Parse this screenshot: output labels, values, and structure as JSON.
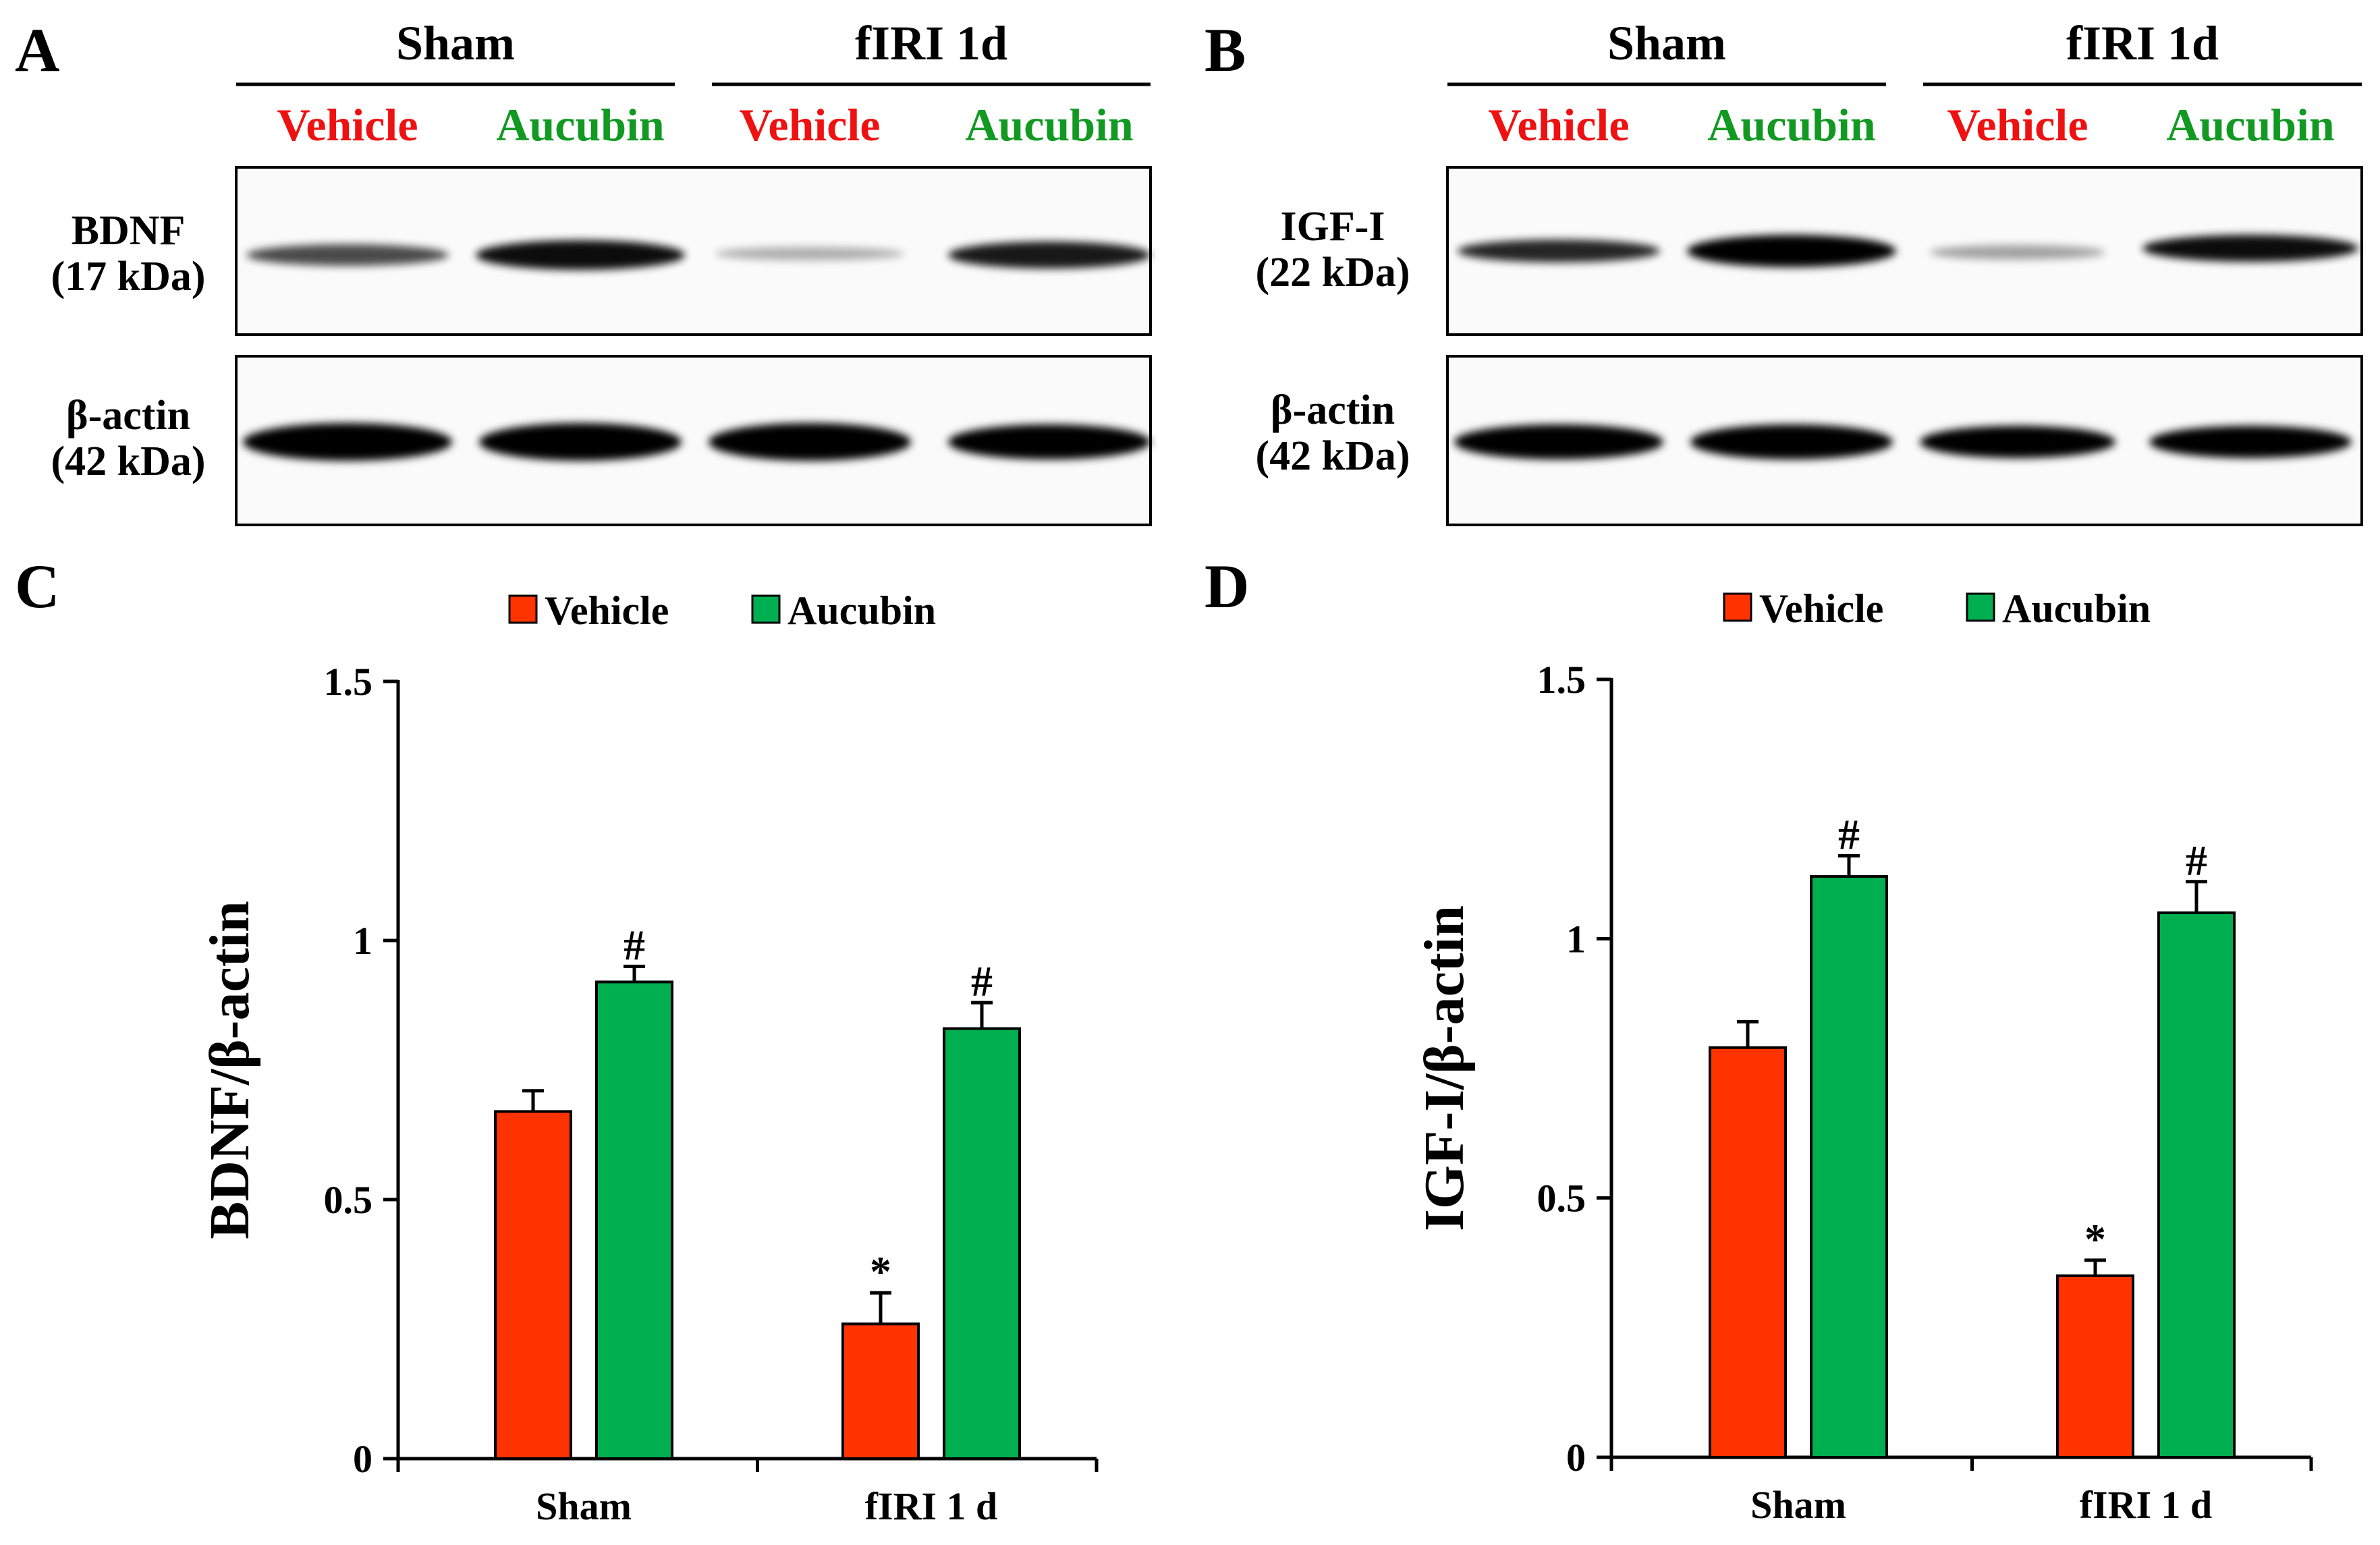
{
  "colors": {
    "vehicle": "#ff3300",
    "aucubin": "#00b050",
    "vehicle_label": "#ee1111",
    "aucubin_label": "#119922"
  },
  "blots": [
    {
      "letter": "A",
      "groups": [
        "Sham",
        "fIRI 1d"
      ],
      "lanes": [
        "Vehicle",
        "Aucubin",
        "Vehicle",
        "Aucubin"
      ],
      "target_label": "BDNF",
      "target_size": "(17 kDa)",
      "control_label": "β-actin",
      "control_size": "(42 kDa)",
      "target_band_intensity": [
        0.7,
        0.95,
        0.3,
        0.9
      ],
      "control_band_intensity": [
        1.0,
        1.0,
        1.0,
        1.0
      ]
    },
    {
      "letter": "B",
      "groups": [
        "Sham",
        "fIRI 1d"
      ],
      "lanes": [
        "Vehicle",
        "Aucubin",
        "Vehicle",
        "Aucubin"
      ],
      "target_label": "IGF-I",
      "target_size": "(22 kDa)",
      "control_label": "β-actin",
      "control_size": "(42 kDa)",
      "target_band_intensity": [
        0.85,
        1.0,
        0.35,
        0.95
      ],
      "control_band_intensity": [
        1.0,
        1.0,
        1.0,
        1.0
      ]
    }
  ],
  "chart_data": [
    {
      "letter": "C",
      "type": "bar",
      "categories": [
        "Sham",
        "fIRI 1 d"
      ],
      "series": [
        {
          "name": "Vehicle",
          "values": [
            0.67,
            0.26
          ],
          "errors": [
            0.04,
            0.06
          ],
          "marks": [
            "",
            "*"
          ]
        },
        {
          "name": "Aucubin",
          "values": [
            0.92,
            0.83
          ],
          "errors": [
            0.03,
            0.05
          ],
          "marks": [
            "#",
            "#"
          ]
        }
      ],
      "ylabel": "BDNF/β-actin",
      "xlabel": "",
      "ylim": [
        0,
        1.5
      ],
      "yticks": [
        "0",
        "0.5",
        "1",
        "1.5"
      ],
      "ytick_values": [
        0,
        0.5,
        1,
        1.5
      ],
      "legend": "top"
    },
    {
      "letter": "D",
      "type": "bar",
      "categories": [
        "Sham",
        "fIRI 1 d"
      ],
      "series": [
        {
          "name": "Vehicle",
          "values": [
            0.79,
            0.35
          ],
          "errors": [
            0.05,
            0.03
          ],
          "marks": [
            "",
            "*"
          ]
        },
        {
          "name": "Aucubin",
          "values": [
            1.12,
            1.05
          ],
          "errors": [
            0.04,
            0.06
          ],
          "marks": [
            "#",
            "#"
          ]
        }
      ],
      "ylabel": "IGF-I/β-actin",
      "xlabel": "",
      "ylim": [
        0,
        1.5
      ],
      "yticks": [
        "0",
        "0.5",
        "1",
        "1.5"
      ],
      "ytick_values": [
        0,
        0.5,
        1,
        1.5
      ],
      "legend": "top"
    }
  ]
}
